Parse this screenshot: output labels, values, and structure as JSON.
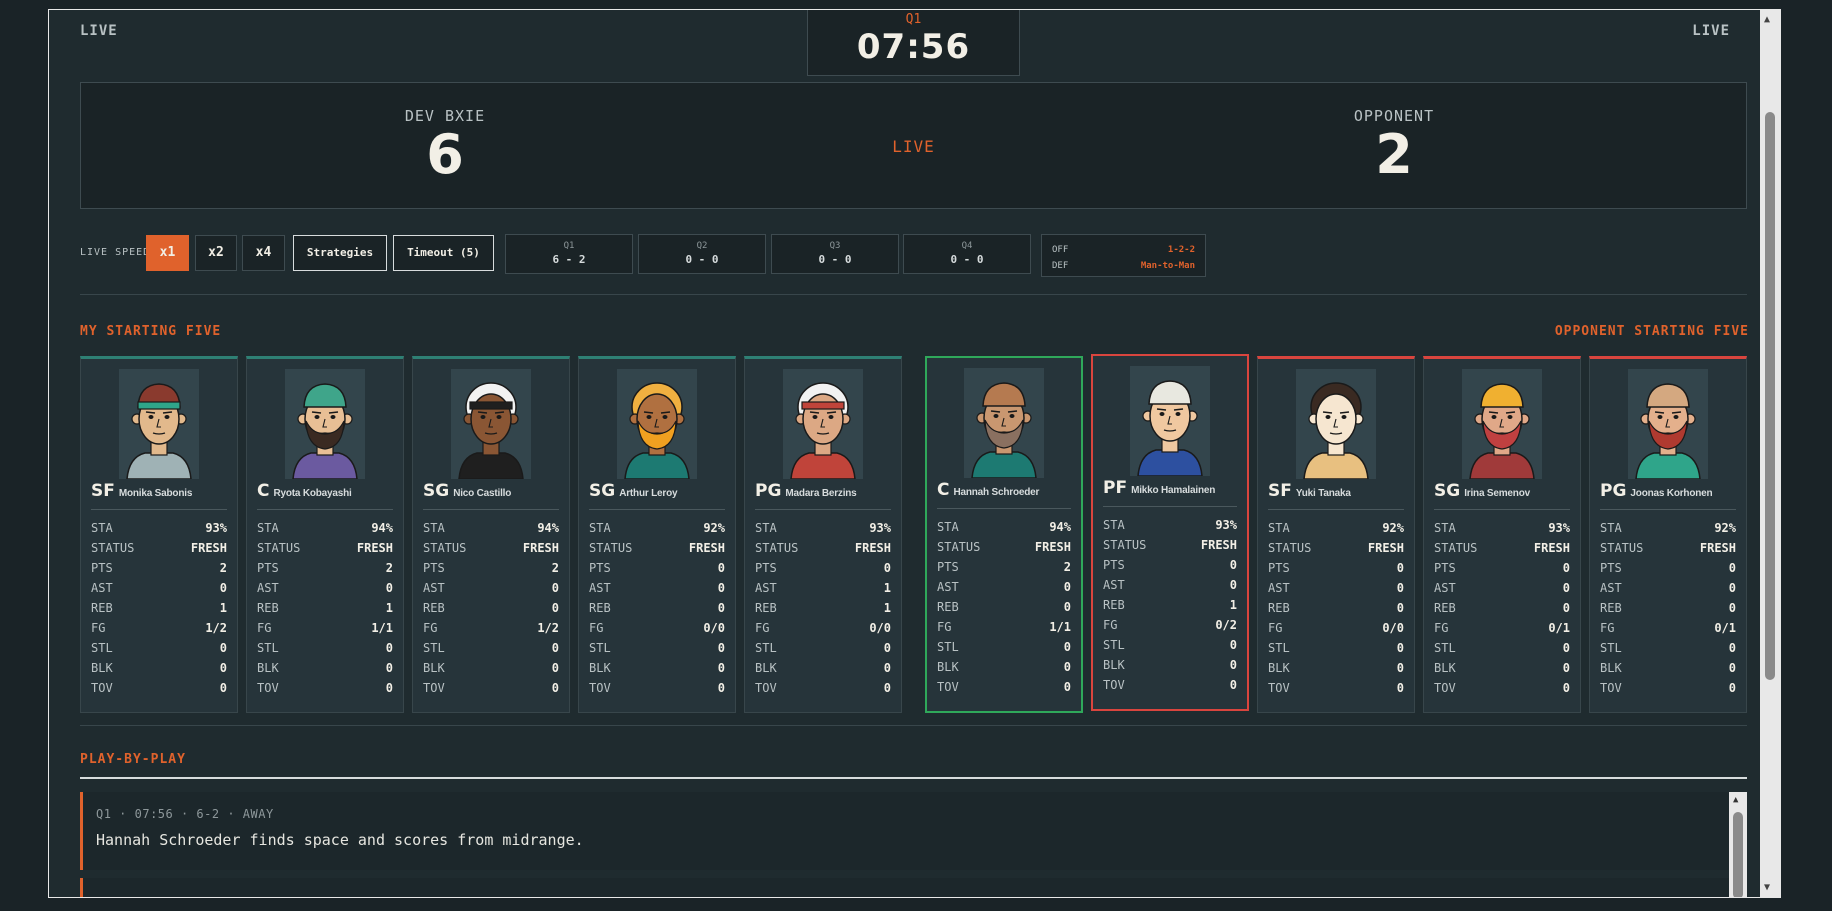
{
  "header": {
    "live_left": "LIVE",
    "live_right": "LIVE",
    "quarter": "Q1",
    "clock": "07:56"
  },
  "scoreboard": {
    "home_name": "DEV BXIE",
    "home_score": "6",
    "status": "LIVE",
    "away_name": "OPPONENT",
    "away_score": "2"
  },
  "controls": {
    "speed_label": "LIVE SPEED",
    "speeds": [
      "x1",
      "x2",
      "x4"
    ],
    "active_speed": "x1",
    "strategies_label": "Strategies",
    "timeout_label": "Timeout (5)",
    "quarters": [
      {
        "label": "Q1",
        "score": "6 - 2"
      },
      {
        "label": "Q2",
        "score": "0 - 0"
      },
      {
        "label": "Q3",
        "score": "0 - 0"
      },
      {
        "label": "Q4",
        "score": "0 - 0"
      }
    ],
    "tactics": {
      "off_label": "OFF",
      "off_value": "1-2-2",
      "def_label": "DEF",
      "def_value": "Man-to-Man"
    }
  },
  "sections": {
    "my_five": "MY STARTING FIVE",
    "opp_five": "OPPONENT STARTING FIVE",
    "pbp": "PLAY-BY-PLAY"
  },
  "stat_labels": [
    "STA",
    "STATUS",
    "PTS",
    "AST",
    "REB",
    "FG",
    "STL",
    "BLK",
    "TOV"
  ],
  "my_players": [
    {
      "pos": "SF",
      "name": "Monika Sabonis",
      "stats": [
        "93%",
        "FRESH",
        "2",
        "0",
        "1",
        "1/2",
        "0",
        "0",
        "0"
      ],
      "avatar": {
        "skin": "#e2b98c",
        "hair": "#8a3a2e",
        "cap": "#8a3a2e",
        "band": "#2fa58a",
        "shirt": "#9fb2b5",
        "beard": ""
      }
    },
    {
      "pos": "C",
      "name": "Ryota Kobayashi",
      "stats": [
        "94%",
        "FRESH",
        "2",
        "0",
        "1",
        "1/1",
        "0",
        "0",
        "0"
      ],
      "avatar": {
        "skin": "#e8bf95",
        "hair": "#3a2a22",
        "cap": "#3fa58a",
        "band": "",
        "shirt": "#6b5aa0",
        "beard": "#3a2a22"
      }
    },
    {
      "pos": "SG",
      "name": "Nico Castillo",
      "stats": [
        "94%",
        "FRESH",
        "2",
        "0",
        "0",
        "1/2",
        "0",
        "0",
        "0"
      ],
      "avatar": {
        "skin": "#8a5634",
        "hair": "#f2f2f2",
        "cap": "",
        "band": "#1f1f1f",
        "shirt": "#1f1f1f",
        "beard": ""
      }
    },
    {
      "pos": "SG",
      "name": "Arthur Leroy",
      "stats": [
        "92%",
        "FRESH",
        "0",
        "0",
        "0",
        "0/0",
        "0",
        "0",
        "0"
      ],
      "avatar": {
        "skin": "#b07040",
        "hair": "#f0b040",
        "cap": "",
        "band": "",
        "shirt": "#1d7a72",
        "beard": "#f0a020"
      }
    },
    {
      "pos": "PG",
      "name": "Madara Berzins",
      "stats": [
        "93%",
        "FRESH",
        "0",
        "1",
        "1",
        "0/0",
        "0",
        "0",
        "0"
      ],
      "avatar": {
        "skin": "#dca884",
        "hair": "#f2f2f2",
        "cap": "",
        "band": "#c0443a",
        "shirt": "#c0443a",
        "beard": ""
      }
    }
  ],
  "opp_players": [
    {
      "pos": "C",
      "name": "Hannah Schroeder",
      "stats": [
        "94%",
        "FRESH",
        "2",
        "0",
        "0",
        "1/1",
        "0",
        "0",
        "0"
      ],
      "avatar": {
        "skin": "#c99770",
        "hair": "#b57a50",
        "cap": "#b57a50",
        "band": "",
        "shirt": "#1d7a72",
        "beard": "#8a7060"
      }
    },
    {
      "pos": "PF",
      "name": "Mikko Hamalainen",
      "stats": [
        "93%",
        "FRESH",
        "0",
        "0",
        "1",
        "0/2",
        "0",
        "0",
        "0"
      ],
      "avatar": {
        "skin": "#f0c8a0",
        "hair": "#e8e8e0",
        "cap": "#e8e8e0",
        "band": "",
        "shirt": "#2d50a0",
        "beard": ""
      }
    },
    {
      "pos": "SF",
      "name": "Yuki Tanaka",
      "stats": [
        "92%",
        "FRESH",
        "0",
        "0",
        "0",
        "0/0",
        "0",
        "0",
        "0"
      ],
      "avatar": {
        "skin": "#f6e6d0",
        "hair": "#3a2a22",
        "cap": "",
        "band": "",
        "shirt": "#e8c080",
        "beard": ""
      }
    },
    {
      "pos": "SG",
      "name": "Irina Semenov",
      "stats": [
        "93%",
        "FRESH",
        "0",
        "0",
        "0",
        "0/1",
        "0",
        "0",
        "0"
      ],
      "avatar": {
        "skin": "#e0a888",
        "hair": "#f0b030",
        "cap": "#f0b030",
        "band": "",
        "shirt": "#a03a3a",
        "beard": "#c04040"
      }
    },
    {
      "pos": "PG",
      "name": "Joonas Korhonen",
      "stats": [
        "92%",
        "FRESH",
        "0",
        "0",
        "0",
        "0/1",
        "0",
        "0",
        "0"
      ],
      "avatar": {
        "skin": "#e4b08c",
        "hair": "#d4a880",
        "cap": "#d4a880",
        "band": "",
        "shirt": "#2fa58a",
        "beard": "#b03a30"
      }
    }
  ],
  "pbp": [
    {
      "meta": "Q1 · 07:56 · 6-2 · AWAY",
      "text": "Hannah Schroeder finds space and scores from midrange."
    }
  ]
}
